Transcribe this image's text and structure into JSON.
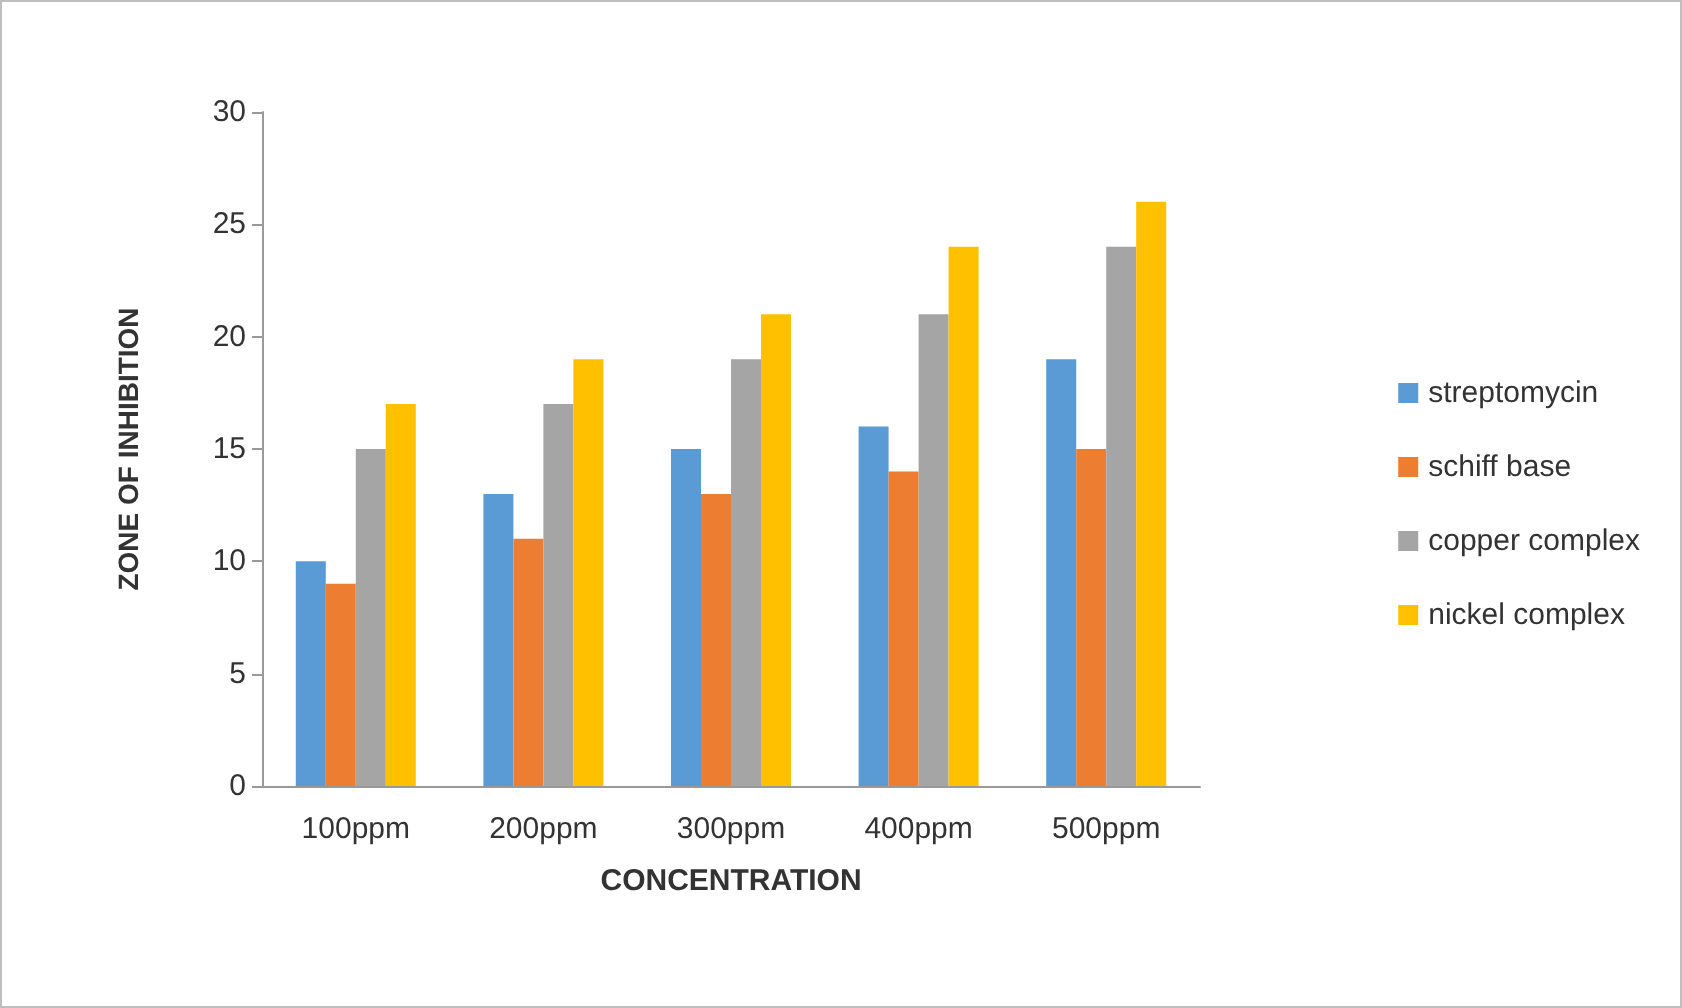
{
  "chart_data": {
    "type": "bar",
    "xlabel": "CONCENTRATION",
    "ylabel": "ZONE OF INHIBITION",
    "categories": [
      "100ppm",
      "200ppm",
      "300ppm",
      "400ppm",
      "500ppm"
    ],
    "series": [
      {
        "name": "streptomycin",
        "color": "#5b9bd5",
        "values": [
          10,
          13,
          15,
          16,
          19
        ]
      },
      {
        "name": "schiff base",
        "color": "#ed7d31",
        "values": [
          9,
          11,
          13,
          14,
          15
        ]
      },
      {
        "name": "copper complex",
        "color": "#a5a5a5",
        "values": [
          15,
          17,
          19,
          21,
          24
        ]
      },
      {
        "name": "nickel complex",
        "color": "#ffc000",
        "values": [
          17,
          19,
          21,
          24,
          26
        ]
      }
    ],
    "ylim": [
      0,
      30
    ],
    "yticks": [
      0,
      5,
      10,
      15,
      20,
      25,
      30
    ],
    "grid": false,
    "legend": "right"
  }
}
